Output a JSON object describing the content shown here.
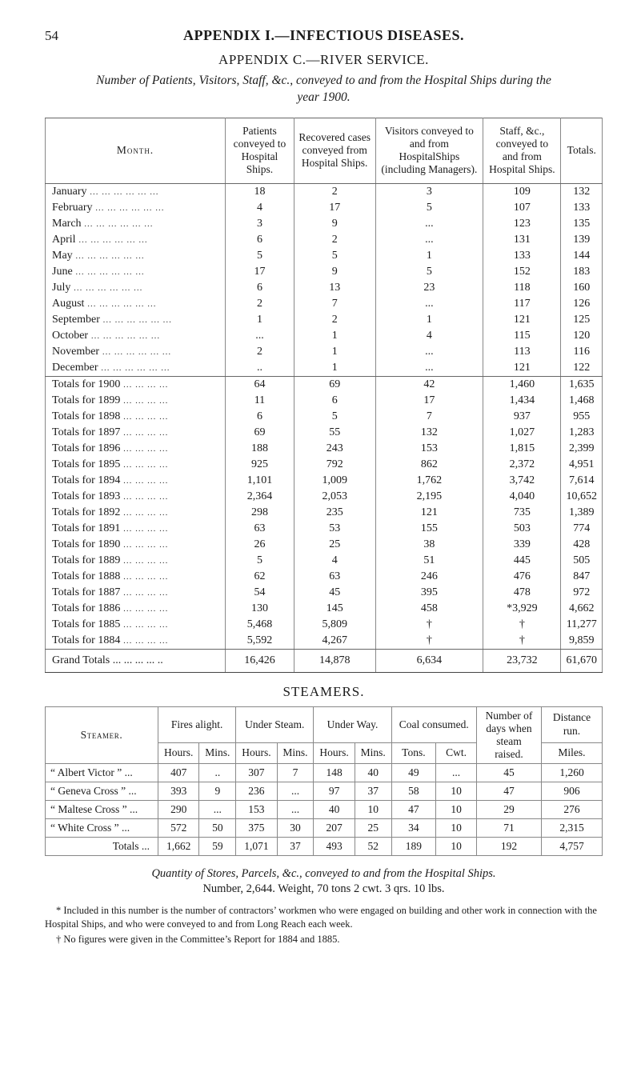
{
  "page_number": "54",
  "heading_main": "APPENDIX I.—INFECTIOUS DISEASES.",
  "heading_sub": "APPENDIX C.—RIVER SERVICE.",
  "intro": "Number of Patients, Visitors, Staff, &c., conveyed to and from the Hospital Ships during the year 1900.",
  "main_headers": {
    "month": "Month.",
    "c1": "Patients conveyed to Hospital Ships.",
    "c2": "Recovered cases conveyed from Hospital Ships.",
    "c3": "Visitors conveyed to and from HospitalShips (including Managers).",
    "c4": "Staff, &c., conveyed to and from Hospital Ships.",
    "c5": "Totals."
  },
  "months": [
    {
      "m": "January",
      "v": [
        "18",
        "2",
        "3",
        "109",
        "132"
      ]
    },
    {
      "m": "February",
      "v": [
        "4",
        "17",
        "5",
        "107",
        "133"
      ]
    },
    {
      "m": "March",
      "v": [
        "3",
        "9",
        "...",
        "123",
        "135"
      ]
    },
    {
      "m": "April",
      "v": [
        "6",
        "2",
        "...",
        "131",
        "139"
      ]
    },
    {
      "m": "May",
      "v": [
        "5",
        "5",
        "1",
        "133",
        "144"
      ]
    },
    {
      "m": "June",
      "v": [
        "17",
        "9",
        "5",
        "152",
        "183"
      ]
    },
    {
      "m": "July",
      "v": [
        "6",
        "13",
        "23",
        "118",
        "160"
      ]
    },
    {
      "m": "August",
      "v": [
        "2",
        "7",
        "...",
        "117",
        "126"
      ]
    },
    {
      "m": "September",
      "v": [
        "1",
        "2",
        "1",
        "121",
        "125"
      ]
    },
    {
      "m": "October",
      "v": [
        "...",
        "1",
        "4",
        "115",
        "120"
      ]
    },
    {
      "m": "November",
      "v": [
        "2",
        "1",
        "...",
        "113",
        "116"
      ]
    },
    {
      "m": "December",
      "v": [
        "..",
        "1",
        "...",
        "121",
        "122"
      ]
    }
  ],
  "totals_years": [
    {
      "m": "Totals for 1900",
      "v": [
        "64",
        "69",
        "42",
        "1,460",
        "1,635"
      ]
    },
    {
      "m": "Totals for 1899",
      "v": [
        "11",
        "6",
        "17",
        "1,434",
        "1,468"
      ]
    },
    {
      "m": "Totals for 1898",
      "v": [
        "6",
        "5",
        "7",
        "937",
        "955"
      ]
    },
    {
      "m": "Totals for 1897",
      "v": [
        "69",
        "55",
        "132",
        "1,027",
        "1,283"
      ]
    },
    {
      "m": "Totals for 1896",
      "v": [
        "188",
        "243",
        "153",
        "1,815",
        "2,399"
      ]
    },
    {
      "m": "Totals for 1895",
      "v": [
        "925",
        "792",
        "862",
        "2,372",
        "4,951"
      ]
    },
    {
      "m": "Totals for 1894",
      "v": [
        "1,101",
        "1,009",
        "1,762",
        "3,742",
        "7,614"
      ]
    },
    {
      "m": "Totals for 1893",
      "v": [
        "2,364",
        "2,053",
        "2,195",
        "4,040",
        "10,652"
      ]
    },
    {
      "m": "Totals for 1892",
      "v": [
        "298",
        "235",
        "121",
        "735",
        "1,389"
      ]
    },
    {
      "m": "Totals for 1891",
      "v": [
        "63",
        "53",
        "155",
        "503",
        "774"
      ]
    },
    {
      "m": "Totals for 1890",
      "v": [
        "26",
        "25",
        "38",
        "339",
        "428"
      ]
    },
    {
      "m": "Totals for 1889",
      "v": [
        "5",
        "4",
        "51",
        "445",
        "505"
      ]
    },
    {
      "m": "Totals for 1888",
      "v": [
        "62",
        "63",
        "246",
        "476",
        "847"
      ]
    },
    {
      "m": "Totals for 1887",
      "v": [
        "54",
        "45",
        "395",
        "478",
        "972"
      ]
    },
    {
      "m": "Totals for 1886",
      "v": [
        "130",
        "145",
        "458",
        "*3,929",
        "4,662"
      ]
    },
    {
      "m": "Totals for 1885",
      "v": [
        "5,468",
        "5,809",
        "†",
        "†",
        "11,277"
      ]
    },
    {
      "m": "Totals for 1884",
      "v": [
        "5,592",
        "4,267",
        "†",
        "†",
        "9,859"
      ]
    }
  ],
  "grand": {
    "m": "Grand Totals ...  ...  ...  ...  ..",
    "v": [
      "16,426",
      "14,878",
      "6,634",
      "23,732",
      "61,670"
    ]
  },
  "steamers_title": "STEAMERS.",
  "steam_headers": {
    "steamer": "Steamer.",
    "fires": "Fires alight.",
    "under_steam": "Under Steam.",
    "under_way": "Under Way.",
    "coal": "Coal consumed.",
    "days": "Number of days when steam raised.",
    "dist": "Distance run.",
    "hours": "Hours.",
    "mins": "Mins.",
    "tons": "Tons.",
    "cwt": "Cwt.",
    "miles": "Miles."
  },
  "steam_rows": [
    {
      "name": "“ Albert Victor ” ...",
      "v": [
        "407",
        "..",
        "307",
        "7",
        "148",
        "40",
        "49",
        "...",
        "45",
        "1,260"
      ]
    },
    {
      "name": "“ Geneva Cross ” ...",
      "v": [
        "393",
        "9",
        "236",
        "...",
        "97",
        "37",
        "58",
        "10",
        "47",
        "906"
      ]
    },
    {
      "name": "“ Maltese Cross ” ...",
      "v": [
        "290",
        "...",
        "153",
        "...",
        "40",
        "10",
        "47",
        "10",
        "29",
        "276"
      ]
    },
    {
      "name": "“ White Cross ”  ...",
      "v": [
        "572",
        "50",
        "375",
        "30",
        "207",
        "25",
        "34",
        "10",
        "71",
        "2,315"
      ]
    }
  ],
  "steam_total": {
    "name": "Totals   ...",
    "v": [
      "1,662",
      "59",
      "1,071",
      "37",
      "493",
      "52",
      "189",
      "10",
      "192",
      "4,757"
    ]
  },
  "quantity_line1_a": "Quantity of Stores, Parcels, &c., conveyed to and from the Hospital Ships.",
  "quantity_line2": "Number, 2,644.     Weight, 70 tons 2 cwt. 3 qrs. 10 lbs.",
  "footnote_star": "* Included in this number is the number of contractors’ workmen who were engaged on building and other work in connection with the Hospital Ships, and who were conveyed to and from Long Reach each week.",
  "footnote_dagger": "† No figures were given in the Committee’s Report for 1884 and 1885.",
  "style": {
    "page_bg": "#ffffff",
    "text_color": "#1b1b1b",
    "rule_color": "#888888",
    "font": "Times New Roman"
  }
}
